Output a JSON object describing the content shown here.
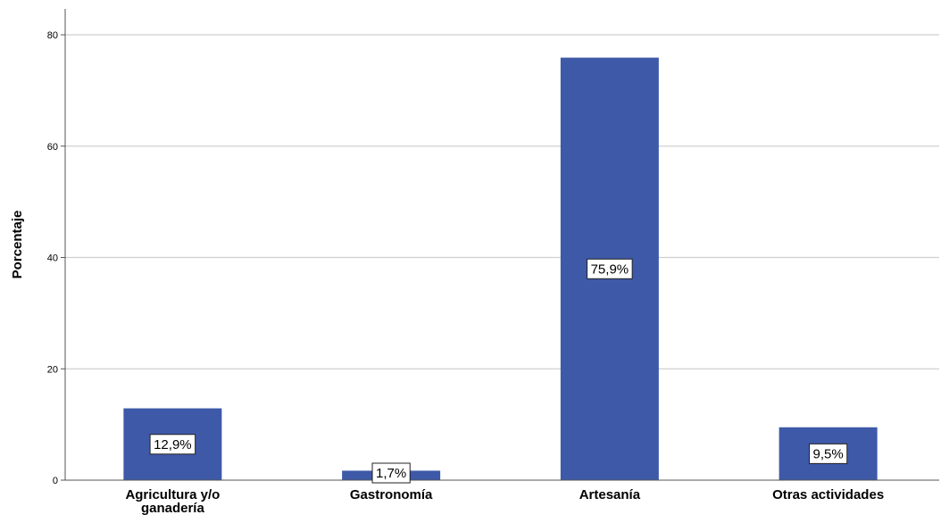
{
  "chart_data": {
    "type": "bar",
    "categories": [
      [
        "Agricultura y/o",
        "ganadería"
      ],
      [
        "Gastronomía"
      ],
      [
        "Artesanía"
      ],
      [
        "Otras actividades"
      ]
    ],
    "values": [
      12.9,
      1.7,
      75.9,
      9.5
    ],
    "data_labels": [
      "12,9%",
      "1,7%",
      "75,9%",
      "9,5%"
    ],
    "title": "",
    "xlabel": "",
    "ylabel": "Porcentaje",
    "ylim": [
      0,
      85
    ],
    "yticks": [
      0,
      20,
      40,
      60,
      80
    ],
    "grid": true,
    "legend": "none",
    "colors": {
      "bar": "#3e59a8",
      "grid": "#d0d0d0",
      "axis": "#555555"
    }
  }
}
